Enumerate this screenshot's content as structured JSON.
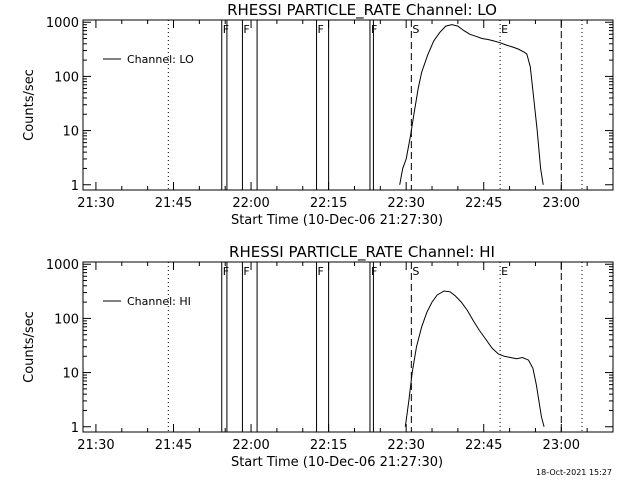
{
  "timestamp": "18-Oct-2021 15:27",
  "chart_data": [
    {
      "type": "line",
      "title": "RHESSI PARTICLE_RATE Channel: LO",
      "xlabel": "Start Time (10-Dec-06 21:27:30)",
      "ylabel": "Counts/sec",
      "yscale": "log",
      "xlim": [
        "21:27:30",
        "23:10:00"
      ],
      "ylim": [
        0.8,
        1100
      ],
      "x_ticks": [
        "21:30",
        "21:45",
        "22:00",
        "22:15",
        "22:30",
        "22:45",
        "23:00"
      ],
      "y_ticks": [
        "1",
        "10",
        "100",
        "1000"
      ],
      "legend": {
        "entries": [
          "Channel: LO"
        ],
        "placement": "top-left"
      },
      "grid": false,
      "series": [
        {
          "name": "Channel: LO",
          "x": [
            "22:28:45",
            "22:29:20",
            "22:30:00",
            "22:30:50",
            "22:31:30",
            "22:32:20",
            "22:33:00",
            "22:34:10",
            "22:35:20",
            "22:36:30",
            "22:37:40",
            "22:38:50",
            "22:40:00",
            "22:41:10",
            "22:42:20",
            "22:43:30",
            "22:44:40",
            "22:45:50",
            "22:47:00",
            "22:48:10",
            "22:49:20",
            "22:50:30",
            "22:51:40",
            "22:52:50",
            "22:53:20",
            "22:54:00",
            "22:54:40",
            "22:55:20",
            "22:56:00",
            "22:56:30"
          ],
          "y": [
            1,
            2,
            3,
            8,
            20,
            60,
            120,
            250,
            450,
            650,
            850,
            900,
            850,
            700,
            600,
            550,
            500,
            480,
            450,
            420,
            380,
            350,
            320,
            280,
            260,
            150,
            40,
            10,
            2,
            1
          ]
        }
      ],
      "annotations": {
        "flare_start_lines": [
          "21:54:20",
          "21:55:20",
          "21:58:20",
          "22:01:10",
          "22:12:40",
          "22:15:00",
          "22:23:00",
          "22:23:40"
        ],
        "flare_start_labels": [
          "F",
          "F",
          "F",
          "F"
        ],
        "dashed_lines": [
          "22:31:00",
          "23:00:00"
        ],
        "dashed_labels": [
          "S"
        ],
        "dotted_lines": [
          "21:27:30",
          "21:44:00",
          "22:48:10",
          "23:04:00"
        ],
        "dotted_labels": [
          "E"
        ]
      }
    },
    {
      "type": "line",
      "title": "RHESSI PARTICLE_RATE Channel: HI",
      "xlabel": "Start Time (10-Dec-06 21:27:30)",
      "ylabel": "Counts/sec",
      "yscale": "log",
      "xlim": [
        "21:27:30",
        "23:10:00"
      ],
      "ylim": [
        0.8,
        1100
      ],
      "x_ticks": [
        "21:30",
        "21:45",
        "22:00",
        "22:15",
        "22:30",
        "22:45",
        "23:00"
      ],
      "y_ticks": [
        "1",
        "10",
        "100",
        "1000"
      ],
      "legend": {
        "entries": [
          "Channel: HI"
        ],
        "placement": "top-left"
      },
      "grid": false,
      "series": [
        {
          "name": "Channel: HI",
          "x": [
            "22:29:50",
            "22:30:30",
            "22:31:10",
            "22:32:00",
            "22:33:00",
            "22:34:00",
            "22:35:00",
            "22:36:00",
            "22:37:20",
            "22:38:30",
            "22:39:30",
            "22:40:40",
            "22:41:50",
            "22:43:00",
            "22:44:10",
            "22:45:30",
            "22:46:40",
            "22:47:50",
            "22:49:00",
            "22:50:10",
            "22:51:20",
            "22:52:30",
            "22:53:40",
            "22:54:30",
            "22:55:10",
            "22:55:40",
            "22:56:10",
            "22:56:40"
          ],
          "y": [
            1,
            3,
            10,
            30,
            70,
            130,
            200,
            270,
            320,
            310,
            260,
            200,
            140,
            90,
            60,
            40,
            28,
            22,
            20,
            19,
            18,
            19,
            17,
            12,
            6,
            3,
            1.5,
            1
          ]
        }
      ],
      "annotations": {
        "flare_start_lines": [
          "21:54:20",
          "21:55:20",
          "21:58:20",
          "22:01:10",
          "22:12:40",
          "22:15:00",
          "22:23:00",
          "22:23:40"
        ],
        "flare_start_labels": [
          "F",
          "F",
          "F",
          "F"
        ],
        "dashed_lines": [
          "22:31:00",
          "23:00:00"
        ],
        "dashed_labels": [
          "S"
        ],
        "dotted_lines": [
          "21:27:30",
          "21:44:00",
          "22:48:10",
          "23:04:00"
        ],
        "dotted_labels": [
          "E"
        ]
      }
    }
  ]
}
